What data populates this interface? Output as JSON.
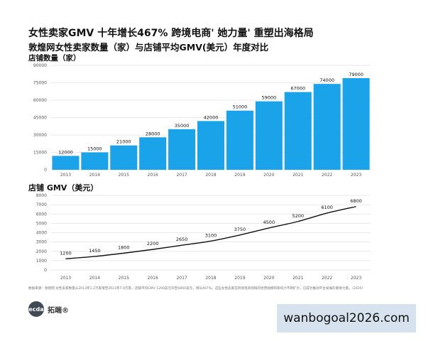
{
  "header": {
    "title": "女性卖家GMV 十年增长467% 跨境电商' 她力量' 重塑出海格局",
    "subtitle": "敦煌网女性卖家数量（家）与店铺平均GMV(美元）年度对比"
  },
  "chart_data": [
    {
      "type": "bar",
      "ylabel": "店铺数量（家）",
      "categories": [
        "2013",
        "2014",
        "2015",
        "2016",
        "2017",
        "2018",
        "2019",
        "2020",
        "2021",
        "2022",
        "2023"
      ],
      "values": [
        12000,
        15000,
        21000,
        28000,
        35000,
        42000,
        51000,
        59000,
        67000,
        74000,
        79000
      ],
      "yticks": [
        0,
        15000,
        30000,
        45000,
        60000,
        75000,
        90000
      ],
      "ylim": [
        0,
        90000
      ],
      "grid": true,
      "color": "#1aa3e8"
    },
    {
      "type": "line",
      "ylabel": "店铺 GMV（美元）",
      "categories": [
        "2013",
        "2014",
        "2015",
        "2016",
        "2017",
        "2018",
        "2019",
        "2020",
        "2021",
        "2022",
        "2023"
      ],
      "values": [
        1200,
        1450,
        1800,
        2200,
        2650,
        3100,
        3750,
        4500,
        5200,
        6100,
        6800
      ],
      "yticks": [
        0,
        1000,
        2000,
        3000,
        4000,
        5000,
        6000,
        7000,
        8000
      ],
      "ylim": [
        0,
        8000
      ],
      "grid": true,
      "color": "#111111"
    }
  ],
  "footer": {
    "note": "数据来源：敦煌网 女性卖家数量从2013年1.2万家增至2023年7.9万家，店铺平均GMV 1200美元升至6800美元，增长467%。这些女性卖家在跨境电商领域的经营规模和影响力不断扩大，已成为推动平台发展的重要力量。（2025）",
    "logo_mark": "tecdat",
    "logo_text": "拓端®"
  },
  "watermark": "wanbogoal2026.com"
}
